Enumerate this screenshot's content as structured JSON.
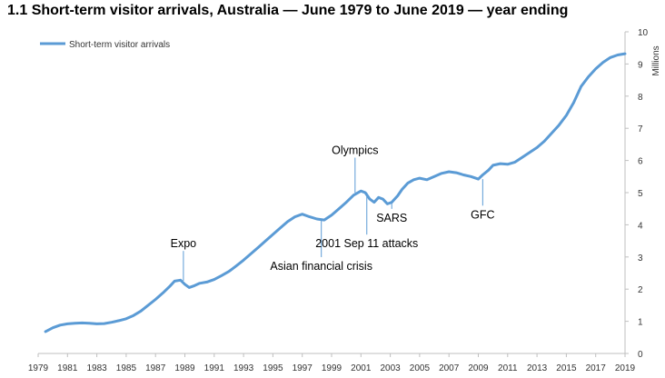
{
  "title": "1.1 Short-term visitor arrivals, Australia — June 1979 to June 2019 — year ending",
  "chart_data": {
    "type": "line",
    "title": "1.1 Short-term visitor arrivals, Australia — June 1979 to June 2019 — year ending",
    "ylabel": "Millions",
    "xlabel": "",
    "xlim": [
      1979,
      2019
    ],
    "ylim": [
      0,
      10
    ],
    "x_ticks": [
      "1979",
      "1981",
      "1983",
      "1985",
      "1987",
      "1989",
      "1991",
      "1993",
      "1995",
      "1997",
      "1999",
      "2001",
      "2003",
      "2005",
      "2007",
      "2009",
      "2011",
      "2013",
      "2015",
      "2017",
      "2019"
    ],
    "y_ticks": [
      "0",
      "1",
      "2",
      "3",
      "4",
      "5",
      "6",
      "7",
      "8",
      "9",
      "10"
    ],
    "grid": false,
    "legend_position": "top-left",
    "color": "#5b9bd5",
    "series": [
      {
        "name": "Short-term visitor arrivals",
        "x": [
          1979.5,
          1980,
          1980.5,
          1981,
          1981.5,
          1982,
          1982.5,
          1983,
          1983.5,
          1984,
          1984.5,
          1985,
          1985.5,
          1986,
          1986.5,
          1987,
          1987.5,
          1988,
          1988.3,
          1988.7,
          1989,
          1989.3,
          1989.6,
          1990,
          1990.5,
          1991,
          1991.5,
          1992,
          1992.5,
          1993,
          1993.5,
          1994,
          1994.5,
          1995,
          1995.5,
          1996,
          1996.5,
          1997,
          1997.5,
          1998,
          1998.5,
          1999,
          1999.5,
          2000,
          2000.5,
          2001,
          2001.3,
          2001.6,
          2001.9,
          2002.2,
          2002.5,
          2002.8,
          2003.1,
          2003.5,
          2003.8,
          2004.2,
          2004.6,
          2005,
          2005.5,
          2006,
          2006.5,
          2007,
          2007.5,
          2008,
          2008.5,
          2009,
          2009.3,
          2009.7,
          2010,
          2010.5,
          2011,
          2011.5,
          2012,
          2012.5,
          2013,
          2013.5,
          2014,
          2014.5,
          2015,
          2015.5,
          2016,
          2016.5,
          2017,
          2017.5,
          2018,
          2018.5,
          2019
        ],
        "values": [
          0.68,
          0.8,
          0.88,
          0.92,
          0.94,
          0.95,
          0.94,
          0.92,
          0.93,
          0.97,
          1.02,
          1.08,
          1.18,
          1.32,
          1.5,
          1.68,
          1.88,
          2.1,
          2.25,
          2.28,
          2.15,
          2.05,
          2.1,
          2.18,
          2.22,
          2.3,
          2.42,
          2.55,
          2.72,
          2.9,
          3.1,
          3.3,
          3.5,
          3.7,
          3.9,
          4.1,
          4.25,
          4.33,
          4.25,
          4.18,
          4.15,
          4.3,
          4.5,
          4.7,
          4.92,
          5.05,
          5.0,
          4.8,
          4.7,
          4.85,
          4.8,
          4.65,
          4.7,
          4.9,
          5.1,
          5.3,
          5.4,
          5.45,
          5.4,
          5.5,
          5.6,
          5.65,
          5.62,
          5.55,
          5.5,
          5.42,
          5.55,
          5.7,
          5.85,
          5.9,
          5.88,
          5.95,
          6.1,
          6.25,
          6.4,
          6.6,
          6.85,
          7.1,
          7.4,
          7.8,
          8.3,
          8.6,
          8.85,
          9.05,
          9.2,
          9.28,
          9.32
        ]
      }
    ],
    "annotations": [
      {
        "label": "Expo",
        "x": 1988.9,
        "y": 2.26,
        "label_y": 3.3
      },
      {
        "label": "Asian financial crisis",
        "x": 1998.3,
        "y": 4.15,
        "label_y": 2.6
      },
      {
        "label": "Olympics",
        "x": 2000.6,
        "y": 5.0,
        "label_y": 6.2
      },
      {
        "label": "2001 Sep 11 attacks",
        "x": 2001.4,
        "y": 5.0,
        "label_y": 3.3
      },
      {
        "label": "SARS",
        "x": 2003.1,
        "y": 4.7,
        "label_y": 4.1
      },
      {
        "label": "GFC",
        "x": 2009.3,
        "y": 5.42,
        "label_y": 4.2
      }
    ]
  }
}
